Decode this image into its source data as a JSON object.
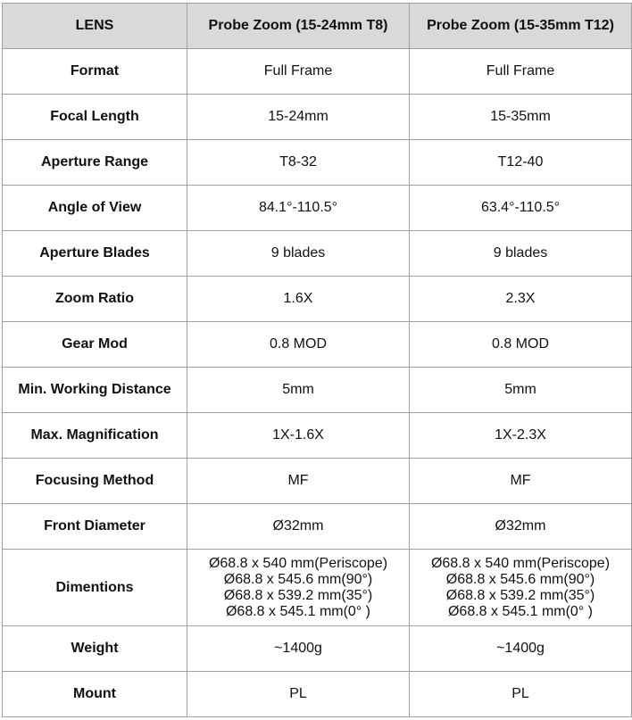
{
  "table": {
    "header": [
      "LENS",
      "Probe Zoom (15-24mm T8)",
      "Probe Zoom (15-35mm T12)"
    ],
    "rows": [
      [
        "Format",
        "Full Frame",
        "Full Frame"
      ],
      [
        "Focal Length",
        "15-24mm",
        "15-35mm"
      ],
      [
        "Aperture Range",
        "T8-32",
        "T12-40"
      ],
      [
        "Angle of View",
        "84.1°-110.5°",
        "63.4°-110.5°"
      ],
      [
        "Aperture Blades",
        "9 blades",
        "9 blades"
      ],
      [
        "Zoom Ratio",
        "1.6X",
        "2.3X"
      ],
      [
        "Gear Mod",
        "0.8 MOD",
        "0.8 MOD"
      ],
      [
        "Min. Working Distance",
        "5mm",
        "5mm"
      ],
      [
        "Max. Magnification",
        "1X-1.6X",
        "1X-2.3X"
      ],
      [
        "Focusing Method",
        "MF",
        "MF"
      ],
      [
        "Front Diameter",
        "Ø32mm",
        "Ø32mm"
      ],
      [
        "Dimentions",
        [
          "Ø68.8 x 540 mm(Periscope)",
          "Ø68.8 x 545.6 mm(90°)",
          "Ø68.8 x 539.2 mm(35°)",
          "Ø68.8 x 545.1 mm(0° )"
        ],
        [
          "Ø68.8 x 540 mm(Periscope)",
          "Ø68.8 x 545.6 mm(90°)",
          "Ø68.8 x 539.2 mm(35°)",
          "Ø68.8 x 545.1 mm(0° )"
        ]
      ],
      [
        "Weight",
        "~1400g",
        "~1400g"
      ],
      [
        "Mount",
        "PL",
        "PL"
      ]
    ]
  }
}
